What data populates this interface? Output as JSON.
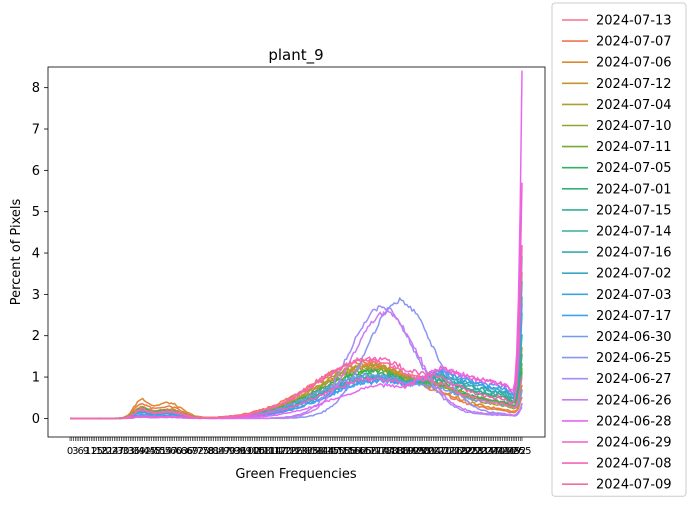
{
  "chart_data": {
    "type": "line",
    "title": "plant_9",
    "xlabel": "Green Frequencies",
    "ylabel": "Percent of Pixels",
    "xlim": [
      0,
      255
    ],
    "ylim": [
      -0.45,
      8.5
    ],
    "yticks": [
      0,
      1,
      2,
      3,
      4,
      5,
      6,
      7,
      8
    ],
    "grid": false,
    "legend_position": "outside-right",
    "series": [
      {
        "name": "2024-07-13",
        "color": "#f77189",
        "profile": {
          "peak_pos": 170,
          "peak_h": 1.25,
          "hump_h": 0.22,
          "tail_h": 0.45,
          "end_h": 3.3
        }
      },
      {
        "name": "2024-07-07",
        "color": "#f2754a",
        "profile": {
          "peak_pos": 166,
          "peak_h": 1.35,
          "hump_h": 0.38,
          "tail_h": 0.15,
          "end_h": 0.45
        }
      },
      {
        "name": "2024-07-06",
        "color": "#dc8932",
        "profile": {
          "peak_pos": 168,
          "peak_h": 1.3,
          "hump_h": 0.5,
          "tail_h": 0.18,
          "end_h": 0.55
        }
      },
      {
        "name": "2024-07-12",
        "color": "#c4962f",
        "profile": {
          "peak_pos": 168,
          "peak_h": 1.22,
          "hump_h": 0.3,
          "tail_h": 0.35,
          "end_h": 1.5
        }
      },
      {
        "name": "2024-07-04",
        "color": "#ae9d31",
        "profile": {
          "peak_pos": 170,
          "peak_h": 1.28,
          "hump_h": 0.28,
          "tail_h": 0.25,
          "end_h": 0.7
        }
      },
      {
        "name": "2024-07-10",
        "color": "#97a431",
        "profile": {
          "peak_pos": 170,
          "peak_h": 1.18,
          "hump_h": 0.24,
          "tail_h": 0.3,
          "end_h": 1.1
        }
      },
      {
        "name": "2024-07-11",
        "color": "#77ab31",
        "profile": {
          "peak_pos": 172,
          "peak_h": 1.15,
          "hump_h": 0.22,
          "tail_h": 0.33,
          "end_h": 1.2
        }
      },
      {
        "name": "2024-07-05",
        "color": "#32b166",
        "profile": {
          "peak_pos": 170,
          "peak_h": 1.12,
          "hump_h": 0.26,
          "tail_h": 0.35,
          "end_h": 0.9
        }
      },
      {
        "name": "2024-07-01",
        "color": "#33b07a",
        "profile": {
          "peak_pos": 172,
          "peak_h": 1.05,
          "hump_h": 0.2,
          "tail_h": 0.45,
          "end_h": 1.3
        }
      },
      {
        "name": "2024-07-15",
        "color": "#35ae93",
        "profile": {
          "peak_pos": 172,
          "peak_h": 1.02,
          "hump_h": 0.22,
          "tail_h": 0.5,
          "end_h": 1.8
        }
      },
      {
        "name": "2024-07-14",
        "color": "#36ada4",
        "profile": {
          "peak_pos": 174,
          "peak_h": 1.0,
          "hump_h": 0.2,
          "tail_h": 0.55,
          "end_h": 2.2
        }
      },
      {
        "name": "2024-07-16",
        "color": "#37abb4",
        "profile": {
          "peak_pos": 172,
          "peak_h": 0.98,
          "hump_h": 0.18,
          "tail_h": 0.58,
          "end_h": 2.6
        }
      },
      {
        "name": "2024-07-02",
        "color": "#38a9c5",
        "profile": {
          "peak_pos": 174,
          "peak_h": 0.95,
          "hump_h": 0.16,
          "tail_h": 0.62,
          "end_h": 3.0
        }
      },
      {
        "name": "2024-07-03",
        "color": "#3aa5df",
        "profile": {
          "peak_pos": 176,
          "peak_h": 0.92,
          "hump_h": 0.15,
          "tail_h": 0.65,
          "end_h": 3.6
        }
      },
      {
        "name": "2024-07-17",
        "color": "#40a0f4",
        "profile": {
          "peak_pos": 176,
          "peak_h": 0.9,
          "hump_h": 0.1,
          "tail_h": 0.7,
          "end_h": 2.4
        }
      },
      {
        "name": "2024-06-30",
        "color": "#6e9bf4",
        "profile": {
          "peak_pos": 170,
          "peak_h": 1.05,
          "hump_h": 0.05,
          "tail_h": 0.3,
          "end_h": 0.5
        }
      },
      {
        "name": "2024-06-25",
        "color": "#8a95f4",
        "profile": {
          "peak_pos": 186,
          "peak_h": 2.85,
          "hump_h": 0.03,
          "tail_h": 0.1,
          "end_h": 0.3
        }
      },
      {
        "name": "2024-06-27",
        "color": "#a48cf4",
        "profile": {
          "peak_pos": 176,
          "peak_h": 2.7,
          "hump_h": 0.04,
          "tail_h": 0.08,
          "end_h": 0.25
        }
      },
      {
        "name": "2024-06-26",
        "color": "#cc7af4",
        "profile": {
          "peak_pos": 178,
          "peak_h": 2.55,
          "hump_h": 0.04,
          "tail_h": 0.1,
          "end_h": 0.3
        }
      },
      {
        "name": "2024-06-28",
        "color": "#e866f4",
        "profile": {
          "peak_pos": 180,
          "peak_h": 0.8,
          "hump_h": 0.05,
          "tail_h": 0.75,
          "end_h": 8.05
        }
      },
      {
        "name": "2024-06-29",
        "color": "#f45fcc",
        "profile": {
          "peak_pos": 172,
          "peak_h": 0.95,
          "hump_h": 0.06,
          "tail_h": 0.8,
          "end_h": 5.3
        }
      },
      {
        "name": "2024-07-08",
        "color": "#f565b5",
        "profile": {
          "peak_pos": 170,
          "peak_h": 1.45,
          "hump_h": 0.2,
          "tail_h": 0.4,
          "end_h": 4.0
        }
      },
      {
        "name": "2024-07-09",
        "color": "#f66ba1",
        "profile": {
          "peak_pos": 168,
          "peak_h": 1.4,
          "hump_h": 0.24,
          "tail_h": 0.3,
          "end_h": 0.9
        }
      }
    ]
  }
}
